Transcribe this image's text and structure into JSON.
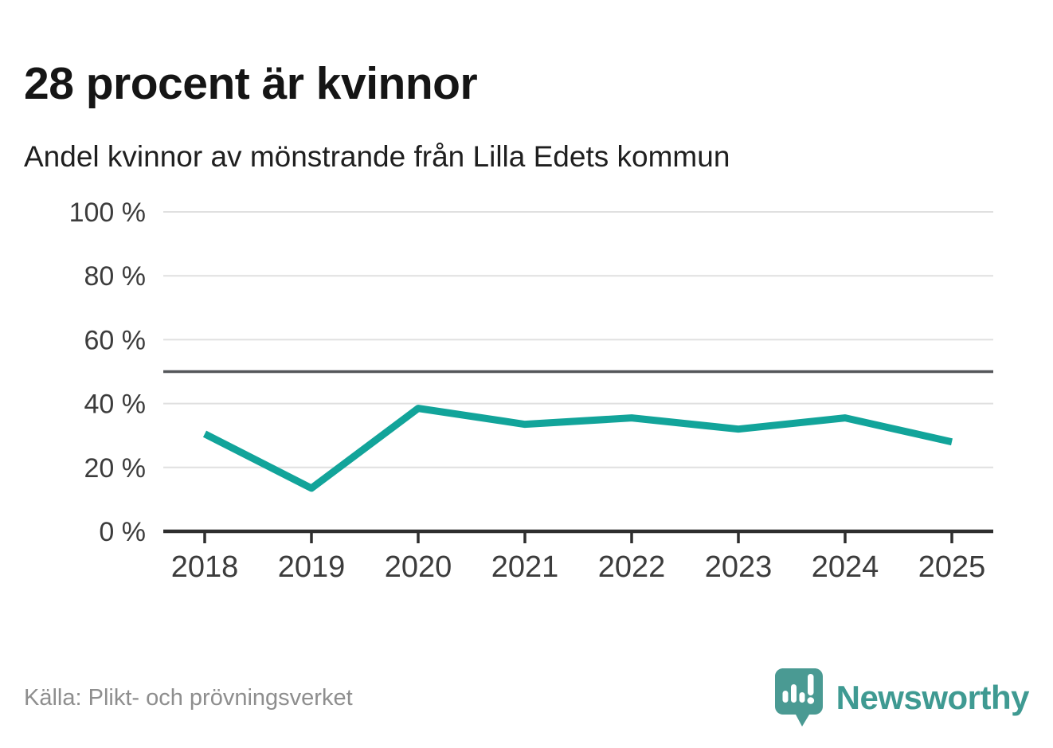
{
  "header": {
    "title": "28 procent är kvinnor",
    "subtitle": "Andel kvinnor av mönstrande från Lilla Edets kommun"
  },
  "chart_data": {
    "type": "line",
    "title": "28 procent är kvinnor",
    "subtitle": "Andel kvinnor av mönstrande från Lilla Edets kommun",
    "categories": [
      "2018",
      "2019",
      "2020",
      "2021",
      "2022",
      "2023",
      "2024",
      "2025"
    ],
    "series": [
      {
        "name": "Andel kvinnor av mönstrande",
        "values": [
          30.5,
          13.5,
          38.5,
          33.5,
          35.5,
          32,
          35.5,
          28
        ]
      }
    ],
    "xlabel": "",
    "ylabel": "",
    "ylim": [
      0,
      100
    ],
    "yticks": [
      0,
      20,
      40,
      60,
      80,
      100
    ],
    "ytick_suffix": " %",
    "reference_line": {
      "value": 50
    },
    "grid": true,
    "legend": "none"
  },
  "footer": {
    "source": "Källa: Plikt- och prövningsverket",
    "brand": "Newsworthy"
  },
  "colors": {
    "line": "#12a49a",
    "grid": "#e0e0e0",
    "axis": "#2e2e2e",
    "reference": "#55575a",
    "tick_label": "#3c3c3c",
    "title": "#151515",
    "subtitle": "#1f1f1f",
    "source": "#8e8e8e",
    "brand_teal": "#3f9a92",
    "brand_icon": "#4a9a93",
    "brand_icon_mark": "#ffffff"
  },
  "icons": {
    "brand_icon_name": "newsworthy-speech-bubble-barchart-icon"
  }
}
